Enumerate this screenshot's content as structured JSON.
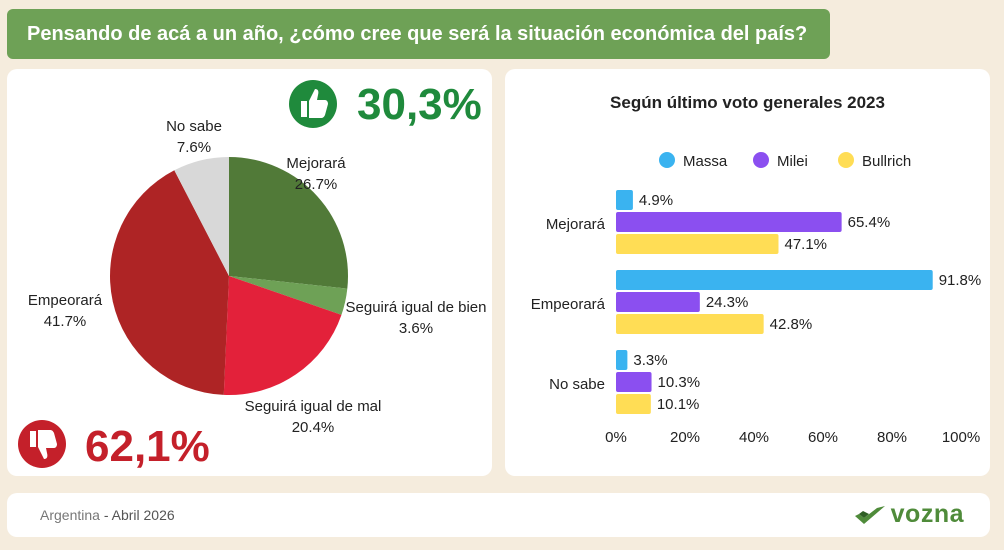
{
  "header": {
    "question": "Pensando de acá a un año, ¿cómo cree que será la situación económica del país?"
  },
  "summary": {
    "positive": "30,3%",
    "negative": "62,1%"
  },
  "colors": {
    "green_dark": "#517a38",
    "green_light": "#6ea156",
    "red_bright": "#e3213a",
    "red_dark": "#ae2425",
    "grey": "#d8d8d8",
    "massa": "#3ab3f0",
    "milei": "#8b4ff0",
    "bullrich": "#ffdd55"
  },
  "chart_data": [
    {
      "type": "pie",
      "title": "",
      "slices": [
        {
          "label": "Mejorará",
          "value": 26.7,
          "display": "26.7%",
          "color": "#517a38"
        },
        {
          "label": "Seguirá igual de bien",
          "value": 3.6,
          "display": "3.6%",
          "color": "#6ea156"
        },
        {
          "label": "Seguirá igual de mal",
          "value": 20.4,
          "display": "20.4%",
          "color": "#e3213a"
        },
        {
          "label": "Empeorará",
          "value": 41.7,
          "display": "41.7%",
          "color": "#ae2425"
        },
        {
          "label": "No sabe",
          "value": 7.6,
          "display": "7.6%",
          "color": "#d8d8d8"
        }
      ]
    },
    {
      "type": "bar",
      "orientation": "horizontal",
      "title": "Según último voto generales 2023",
      "categories": [
        "Mejorará",
        "Empeorará",
        "No sabe"
      ],
      "series": [
        {
          "name": "Massa",
          "color": "#3ab3f0",
          "values": [
            4.9,
            91.8,
            3.3
          ],
          "labels": [
            "4.9%",
            "91.8%",
            "3.3%"
          ]
        },
        {
          "name": "Milei",
          "color": "#8b4ff0",
          "values": [
            65.4,
            24.3,
            10.3
          ],
          "labels": [
            "65.4%",
            "24.3%",
            "10.3%"
          ]
        },
        {
          "name": "Bullrich",
          "color": "#ffdd55",
          "values": [
            47.1,
            42.8,
            10.1
          ],
          "labels": [
            "47.1%",
            "42.8%",
            "10.1%"
          ]
        }
      ],
      "xlim": [
        0,
        100
      ],
      "xticks": [
        "0%",
        "20%",
        "40%",
        "60%",
        "80%",
        "100%"
      ],
      "legend": "top"
    }
  ],
  "footer": {
    "country": "Argentina",
    "separator": " - ",
    "date": "Abril 2026",
    "brand": "vozna"
  }
}
